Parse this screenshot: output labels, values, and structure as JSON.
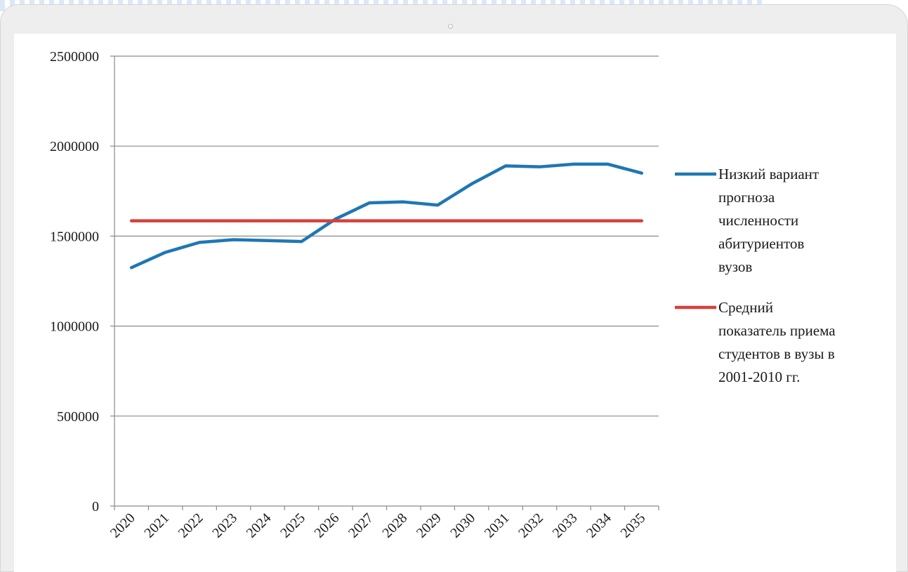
{
  "chart_data": {
    "type": "line",
    "title": "",
    "xlabel": "",
    "ylabel": "",
    "categories": [
      "2020",
      "2021",
      "2022",
      "2023",
      "2024",
      "2025",
      "2026",
      "2027",
      "2028",
      "2029",
      "2030",
      "2031",
      "2032",
      "2033",
      "2034",
      "2035"
    ],
    "ylim": [
      0,
      2500000
    ],
    "yticks": [
      "0",
      "500000",
      "1000000",
      "1500000",
      "2000000",
      "2500000"
    ],
    "grid": "horizontal",
    "legend_position": "right",
    "series": [
      {
        "name": "Низкий вариант прогноза численности абитуриентов вузов",
        "color": "#1f77b4",
        "values": [
          1325000,
          1410000,
          1465000,
          1480000,
          1475000,
          1470000,
          1595000,
          1685000,
          1690000,
          1672000,
          1790000,
          1890000,
          1885000,
          1900000,
          1900000,
          1850000
        ]
      },
      {
        "name": "Средний показатель приема студентов в вузы в 2001-2010 гг.",
        "color": "#d9403b",
        "values": [
          1585000,
          1585000,
          1585000,
          1585000,
          1585000,
          1585000,
          1585000,
          1585000,
          1585000,
          1585000,
          1585000,
          1585000,
          1585000,
          1585000,
          1585000,
          1585000
        ]
      }
    ],
    "legend_lines": [
      [
        "Низкий вариант",
        "прогноза",
        "численности",
        "абитуриентов",
        "вузов"
      ],
      [
        "Средний",
        "показатель приема",
        "студентов в вузы в",
        "2001-2010 гг."
      ]
    ]
  }
}
